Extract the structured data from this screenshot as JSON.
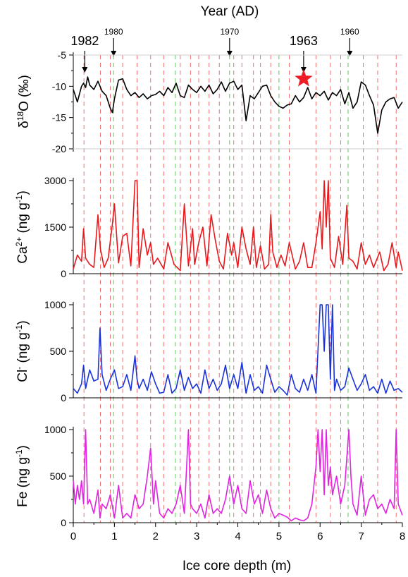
{
  "chart_data": {
    "type": "line",
    "top_axis": {
      "title": "Year (AD)",
      "year_markers": [
        {
          "label": "1982",
          "depth": 0.28,
          "size": "big"
        },
        {
          "label": "1980",
          "depth": 0.98,
          "size": "small"
        },
        {
          "label": "1970",
          "depth": 3.8,
          "size": "small"
        },
        {
          "label": "1963",
          "depth": 5.6,
          "size": "big"
        },
        {
          "label": "1960",
          "depth": 6.72,
          "size": "small"
        }
      ],
      "star_depth": 5.6,
      "star_value": -8.8
    },
    "x_axis": {
      "label": "Ice core depth (m)",
      "range": [
        0,
        8
      ],
      "ticks": [
        "0",
        "1",
        "2",
        "3",
        "4",
        "5",
        "6",
        "7",
        "8"
      ]
    },
    "reference_lines": {
      "red_dashed_depths": [
        0.26,
        0.66,
        0.9,
        1.2,
        1.55,
        1.88,
        2.2,
        2.6,
        2.85,
        3.05,
        3.3,
        3.55,
        3.9,
        4.1,
        4.38,
        4.55,
        4.8,
        5.25,
        5.9,
        6.25,
        6.5,
        7.05,
        7.4,
        7.85
      ],
      "green_dashed_depths": [
        0.98,
        2.48,
        3.8,
        5.0,
        6.68
      ]
    },
    "panels": [
      {
        "id": "d18o",
        "ylabel": "δ18O (‰)",
        "ylabel_parts": {
          "base": "δ",
          "sup": "18",
          "rest": "O (‰)"
        },
        "color": "#000000",
        "yrange": [
          -20,
          -5
        ],
        "yticks": [
          "-5",
          "-10",
          "-15",
          "-20"
        ],
        "reversed": false,
        "x": [
          0,
          0.1,
          0.2,
          0.25,
          0.3,
          0.35,
          0.4,
          0.5,
          0.6,
          0.7,
          0.8,
          0.9,
          0.95,
          1.0,
          1.1,
          1.2,
          1.3,
          1.4,
          1.5,
          1.6,
          1.7,
          1.8,
          1.9,
          2.0,
          2.1,
          2.2,
          2.3,
          2.4,
          2.5,
          2.6,
          2.7,
          2.8,
          2.9,
          3.0,
          3.1,
          3.2,
          3.3,
          3.4,
          3.5,
          3.6,
          3.7,
          3.8,
          3.9,
          4.0,
          4.1,
          4.2,
          4.3,
          4.4,
          4.5,
          4.6,
          4.7,
          4.8,
          4.9,
          5.0,
          5.1,
          5.2,
          5.3,
          5.4,
          5.5,
          5.6,
          5.7,
          5.8,
          5.9,
          6.0,
          6.1,
          6.2,
          6.3,
          6.4,
          6.5,
          6.6,
          6.7,
          6.8,
          6.9,
          7.0,
          7.1,
          7.2,
          7.3,
          7.4,
          7.5,
          7.6,
          7.7,
          7.8,
          7.9,
          8.0
        ],
        "y": [
          -10.5,
          -12.5,
          -10,
          -9.5,
          -10.2,
          -8.5,
          -9.8,
          -10.5,
          -9.2,
          -10.8,
          -11.5,
          -13.5,
          -14.2,
          -12,
          -9,
          -8.8,
          -10.5,
          -11.5,
          -11,
          -11.8,
          -11.2,
          -12,
          -11.5,
          -11.3,
          -10.8,
          -11.5,
          -10.2,
          -11,
          -9.5,
          -11.5,
          -11.8,
          -9.8,
          -10.5,
          -11,
          -10,
          -10.8,
          -9.8,
          -11.2,
          -10.5,
          -9.3,
          -10.8,
          -9.5,
          -9.2,
          -10.5,
          -9.8,
          -15.5,
          -11.5,
          -12,
          -11,
          -10,
          -9.8,
          -11.5,
          -12.5,
          -13.2,
          -13.5,
          -13,
          -12.8,
          -11.5,
          -12.5,
          -11.8,
          -10.2,
          -12,
          -11,
          -11.5,
          -10.8,
          -12.2,
          -11,
          -11.5,
          -10.5,
          -12.8,
          -11,
          -13.5,
          -12.5,
          -9.3,
          -9.8,
          -11.5,
          -13,
          -17.5,
          -13.8,
          -12.5,
          -12,
          -11.8,
          -13.5,
          -12.5
        ]
      },
      {
        "id": "ca",
        "ylabel": "Ca2+ (ng g-1)",
        "ylabel_parts": {
          "base": "Ca",
          "sup": "2+",
          "rest": " (ng g",
          "sup2": "-1",
          "end": ")"
        },
        "color": "#e8191d",
        "yrange": [
          0,
          3000
        ],
        "yticks": [
          "0",
          "1500",
          "3000"
        ],
        "reversed": false,
        "x": [
          0,
          0.1,
          0.2,
          0.25,
          0.3,
          0.4,
          0.5,
          0.6,
          0.66,
          0.75,
          0.85,
          0.95,
          1.0,
          1.1,
          1.2,
          1.3,
          1.4,
          1.5,
          1.55,
          1.6,
          1.7,
          1.8,
          1.88,
          1.95,
          2.05,
          2.2,
          2.3,
          2.45,
          2.6,
          2.7,
          2.8,
          2.9,
          2.95,
          3.05,
          3.15,
          3.25,
          3.35,
          3.45,
          3.55,
          3.65,
          3.75,
          3.85,
          3.9,
          4.0,
          4.1,
          4.2,
          4.3,
          4.38,
          4.45,
          4.55,
          4.65,
          4.75,
          4.8,
          4.85,
          4.95,
          5.05,
          5.15,
          5.25,
          5.4,
          5.5,
          5.6,
          5.7,
          5.8,
          5.9,
          6.0,
          6.05,
          6.1,
          6.15,
          6.2,
          6.25,
          6.35,
          6.45,
          6.55,
          6.65,
          6.7,
          6.8,
          6.9,
          7.0,
          7.1,
          7.2,
          7.3,
          7.45,
          7.55,
          7.65,
          7.75,
          7.85,
          7.9,
          8.0
        ],
        "y": [
          150,
          600,
          400,
          1450,
          500,
          300,
          200,
          1900,
          800,
          200,
          500,
          1600,
          2250,
          350,
          1200,
          1300,
          250,
          3000,
          3000,
          200,
          1450,
          600,
          1000,
          300,
          500,
          150,
          1000,
          300,
          100,
          2250,
          250,
          1450,
          300,
          1000,
          1500,
          250,
          1900,
          1100,
          400,
          150,
          1300,
          600,
          1000,
          200,
          1500,
          800,
          300,
          1500,
          200,
          900,
          150,
          300,
          1900,
          700,
          200,
          600,
          250,
          1000,
          150,
          400,
          1000,
          200,
          200,
          1000,
          2000,
          800,
          3000,
          1500,
          3000,
          500,
          200,
          1200,
          300,
          2200,
          500,
          400,
          150,
          1000,
          300,
          600,
          200,
          700,
          100,
          300,
          1000,
          200,
          700,
          100
        ]
      },
      {
        "id": "cl",
        "ylabel": "Cl- (ng g-1)",
        "ylabel_parts": {
          "base": "Cl",
          "sup": "-",
          "rest": " (ng g",
          "sup2": "-1",
          "end": ")"
        },
        "color": "#1a33d9",
        "yrange": [
          0,
          1000
        ],
        "yticks": [
          "0",
          "500",
          "1000"
        ],
        "reversed": false,
        "x": [
          0,
          0.1,
          0.2,
          0.25,
          0.3,
          0.4,
          0.5,
          0.6,
          0.65,
          0.7,
          0.8,
          0.9,
          1.0,
          1.1,
          1.2,
          1.3,
          1.4,
          1.5,
          1.55,
          1.6,
          1.7,
          1.8,
          1.9,
          2.0,
          2.1,
          2.2,
          2.3,
          2.4,
          2.5,
          2.6,
          2.7,
          2.8,
          2.9,
          3.0,
          3.1,
          3.2,
          3.3,
          3.4,
          3.5,
          3.6,
          3.7,
          3.8,
          3.9,
          4.0,
          4.1,
          4.2,
          4.3,
          4.4,
          4.5,
          4.6,
          4.7,
          4.8,
          4.9,
          5.0,
          5.1,
          5.2,
          5.3,
          5.4,
          5.5,
          5.6,
          5.7,
          5.8,
          5.9,
          6.0,
          6.05,
          6.1,
          6.15,
          6.2,
          6.25,
          6.3,
          6.35,
          6.4,
          6.5,
          6.6,
          6.7,
          6.8,
          6.9,
          7.0,
          7.1,
          7.2,
          7.3,
          7.4,
          7.5,
          7.6,
          7.7,
          7.8,
          7.9,
          8.0
        ],
        "y": [
          100,
          50,
          150,
          350,
          100,
          300,
          180,
          200,
          750,
          250,
          80,
          200,
          300,
          100,
          120,
          250,
          80,
          450,
          200,
          100,
          200,
          80,
          280,
          150,
          50,
          60,
          250,
          50,
          100,
          300,
          80,
          220,
          100,
          150,
          50,
          300,
          100,
          200,
          80,
          150,
          350,
          100,
          250,
          100,
          380,
          50,
          250,
          80,
          120,
          50,
          350,
          200,
          60,
          120,
          80,
          30,
          250,
          100,
          60,
          200,
          80,
          250,
          50,
          1000,
          1000,
          500,
          1000,
          1000,
          200,
          1000,
          80,
          200,
          80,
          120,
          320,
          200,
          80,
          150,
          250,
          80,
          120,
          50,
          200,
          50,
          180,
          80,
          100,
          60
        ]
      },
      {
        "id": "fe",
        "ylabel": "Fe (ng g-1)",
        "ylabel_parts": {
          "base": "Fe",
          "sup": "",
          "rest": " (ng g",
          "sup2": "-1",
          "end": ")"
        },
        "color": "#e024e0",
        "yrange": [
          0,
          1000
        ],
        "yticks": [
          "0",
          "500",
          "1000"
        ],
        "reversed": false,
        "x": [
          0,
          0.05,
          0.1,
          0.15,
          0.2,
          0.25,
          0.3,
          0.35,
          0.4,
          0.5,
          0.6,
          0.65,
          0.7,
          0.8,
          0.9,
          1.0,
          1.1,
          1.2,
          1.3,
          1.4,
          1.5,
          1.6,
          1.7,
          1.8,
          1.88,
          1.95,
          2.0,
          2.1,
          2.2,
          2.3,
          2.4,
          2.5,
          2.6,
          2.7,
          2.8,
          2.85,
          2.9,
          3.0,
          3.1,
          3.2,
          3.3,
          3.4,
          3.5,
          3.6,
          3.7,
          3.8,
          3.9,
          4.0,
          4.1,
          4.2,
          4.3,
          4.4,
          4.5,
          4.6,
          4.7,
          4.8,
          4.9,
          5.0,
          5.1,
          5.2,
          5.3,
          5.4,
          5.5,
          5.6,
          5.7,
          5.8,
          5.9,
          5.95,
          6.0,
          6.05,
          6.1,
          6.15,
          6.2,
          6.25,
          6.3,
          6.4,
          6.5,
          6.6,
          6.7,
          6.75,
          6.8,
          6.9,
          7.0,
          7.1,
          7.2,
          7.3,
          7.4,
          7.5,
          7.6,
          7.7,
          7.8,
          7.85,
          7.9,
          8.0
        ],
        "y": [
          450,
          200,
          400,
          250,
          450,
          200,
          1000,
          200,
          250,
          100,
          350,
          50,
          200,
          150,
          300,
          50,
          400,
          50,
          100,
          50,
          300,
          150,
          200,
          500,
          800,
          200,
          450,
          100,
          50,
          150,
          100,
          200,
          400,
          100,
          1000,
          200,
          150,
          100,
          200,
          50,
          300,
          100,
          150,
          100,
          250,
          500,
          200,
          400,
          150,
          100,
          450,
          200,
          300,
          100,
          350,
          150,
          50,
          100,
          80,
          60,
          20,
          50,
          30,
          20,
          50,
          200,
          600,
          1000,
          550,
          1000,
          300,
          1000,
          400,
          600,
          300,
          500,
          200,
          400,
          1000,
          500,
          200,
          80,
          500,
          80,
          250,
          300,
          150,
          200,
          100,
          250,
          150,
          1000,
          200,
          80
        ]
      }
    ]
  }
}
